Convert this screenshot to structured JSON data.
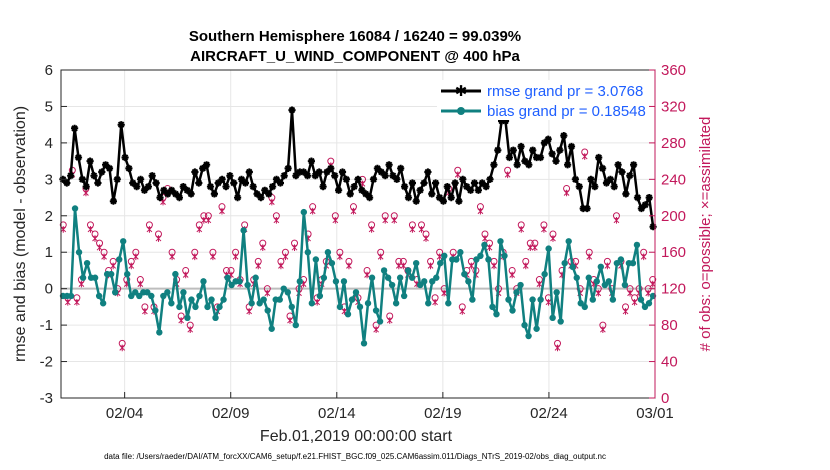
{
  "chart_data": {
    "type": "line",
    "title": "Southern Hemisphere 16084 / 16240 = 99.039%",
    "subtitle": "AIRCRAFT_U_WIND_COMPONENT @ 400 hPa",
    "xlabel": "Feb.01,2019 00:00:00 start",
    "ylabel": "rmse and bias (model - observation)",
    "y2label": "# of obs: o=possible; ×=assimilated",
    "footer": "data file: /Users/raeder/DAI/ATM_forcXX/CAM6_setup/f.e21.FHIST_BGC.f09_025.CAM6assim.011/Diags_NTrS_2019-02/obs_diag_output.nc",
    "x_tick_labels": [
      "02/04",
      "02/09",
      "02/14",
      "02/19",
      "02/24",
      "03/01"
    ],
    "x_tick_days": [
      3,
      8,
      13,
      18,
      23,
      28
    ],
    "xlim": [
      0,
      28
    ],
    "ylim": [
      -3,
      6
    ],
    "y_ticks": [
      "-3",
      "-2",
      "-1",
      "0",
      "1",
      "2",
      "3",
      "4",
      "5",
      "6"
    ],
    "y2lim": [
      0,
      360
    ],
    "y2_ticks": [
      "0",
      "40",
      "80",
      "120",
      "160",
      "200",
      "240",
      "280",
      "320",
      "360"
    ],
    "grid": true,
    "legend_position": "top-right",
    "series": [
      {
        "name": "rmse grand pr = 3.0768",
        "color": "#000000",
        "marker": "star",
        "values": [
          3.0,
          2.9,
          3.1,
          4.4,
          3.6,
          3.0,
          2.8,
          3.5,
          3.1,
          2.9,
          3.2,
          3.4,
          3.3,
          2.4,
          3.0,
          4.5,
          3.6,
          3.3,
          2.9,
          2.8,
          3.0,
          2.7,
          2.8,
          3.1,
          2.9,
          2.5,
          2.7,
          2.6,
          2.7,
          2.6,
          2.5,
          2.8,
          2.7,
          2.6,
          3.2,
          2.9,
          3.3,
          3.4,
          2.8,
          2.6,
          2.9,
          3.0,
          2.8,
          3.1,
          2.9,
          2.5,
          3.0,
          2.9,
          3.2,
          2.8,
          2.6,
          2.5,
          2.7,
          2.6,
          2.8,
          3.0,
          2.9,
          3.1,
          3.3,
          4.9,
          3.1,
          3.2,
          3.2,
          3.1,
          3.5,
          3.1,
          3.2,
          2.8,
          3.2,
          3.3,
          3.1,
          2.7,
          3.2,
          3.0,
          2.6,
          2.8,
          3.0,
          2.7,
          2.6,
          2.5,
          3.0,
          3.3,
          3.2,
          3.1,
          3.4,
          3.1,
          3.0,
          3.3,
          2.8,
          2.5,
          2.9,
          2.4,
          2.7,
          2.9,
          3.2,
          2.6,
          2.9,
          2.5,
          2.4,
          2.8,
          2.5,
          2.9,
          2.4,
          3.0,
          2.8,
          2.7,
          2.9,
          2.7,
          2.9,
          2.8,
          3.0,
          3.4,
          3.8,
          4.6,
          4.6,
          3.6,
          3.8,
          3.4,
          3.9,
          3.5,
          3.4,
          3.8,
          3.6,
          3.6,
          4.0,
          4.1,
          3.7,
          3.5,
          3.8,
          4.2,
          3.4,
          3.9,
          3.0,
          2.8,
          2.2,
          2.2,
          3.0,
          2.8,
          3.6,
          3.3,
          2.9,
          3.0,
          2.8,
          3.4,
          3.2,
          2.6,
          3.1,
          3.4,
          2.5,
          2.2,
          2.3,
          2.5,
          1.7
        ]
      },
      {
        "name": "bias grand pr = 0.18548",
        "color": "#108080",
        "marker": "circle",
        "values": [
          -0.2,
          -0.2,
          -0.2,
          2.2,
          1.0,
          0.3,
          0.7,
          0.3,
          0.3,
          -0.2,
          -0.4,
          0.4,
          0.4,
          -0.1,
          0.8,
          1.3,
          0.4,
          -0.2,
          -0.1,
          -0.2,
          -0.1,
          -0.1,
          -0.2,
          -0.6,
          -1.2,
          -0.2,
          -0.1,
          -0.4,
          0.4,
          -0.5,
          -0.1,
          -0.8,
          -0.3,
          -0.5,
          -0.2,
          0.2,
          -0.5,
          -0.3,
          -0.8,
          -0.5,
          -0.3,
          0.3,
          0.1,
          0.2,
          0.2,
          1.6,
          0.1,
          -0.4,
          0.3,
          -0.4,
          -0.3,
          -0.6,
          -1.1,
          -0.3,
          -0.3,
          0.0,
          -0.1,
          -0.5,
          -1.0,
          0.2,
          2.1,
          1.0,
          -0.4,
          0.8,
          -0.2,
          0.3,
          1.0,
          0.7,
          0.2,
          -0.5,
          0.2,
          -0.7,
          -0.3,
          -0.1,
          -0.5,
          -1.5,
          -0.4,
          0.3,
          -0.6,
          -0.9,
          0.5,
          0.3,
          0.1,
          -0.4,
          0.3,
          -0.2,
          0.5,
          0.3,
          0.7,
          0.1,
          0.2,
          -0.4,
          0.2,
          0.3,
          0.7,
          0.9,
          -0.4,
          0.8,
          0.8,
          1.0,
          0.4,
          0.2,
          -0.3,
          0.8,
          0.9,
          1.2,
          0.8,
          -0.5,
          -0.7,
          1.3,
          0.9,
          -0.3,
          -0.6,
          -0.1,
          0.1,
          -1.0,
          -1.3,
          -0.3,
          -1.1,
          -0.3,
          0.4,
          1.1,
          -0.8,
          -0.1,
          -0.9,
          0.7,
          1.3,
          0.6,
          0.3,
          -0.4,
          -0.5,
          0.3,
          -0.3,
          0.2,
          0.6,
          0.1,
          0.2,
          -0.3,
          0.7,
          0.8,
          0.1,
          0.7,
          0.7,
          1.2,
          -0.3,
          -0.5,
          -0.4,
          -0.2
        ]
      }
    ],
    "obs_possible": [
      190,
      110,
      250,
      110,
      130,
      230,
      190,
      180,
      170,
      160,
      140,
      150,
      120,
      60,
      130,
      150,
      160,
      130,
      100,
      190,
      100,
      180,
      220,
      230,
      160,
      130,
      90,
      140,
      80,
      160,
      190,
      200,
      200,
      160,
      100,
      210,
      140,
      140,
      160,
      130,
      190,
      100,
      130,
      150,
      170,
      120,
      220,
      200,
      150,
      160,
      90,
      170,
      120,
      130,
      180,
      210,
      110,
      130,
      150,
      260,
      200,
      160,
      100,
      150,
      210,
      110,
      240,
      140,
      190,
      80,
      160,
      200,
      90,
      200,
      150,
      150,
      140,
      190,
      130,
      190,
      180,
      150,
      110,
      160,
      120,
      230,
      160,
      250,
      100,
      140,
      150,
      140,
      210,
      180,
      170,
      150,
      120,
      160,
      250,
      140,
      120,
      190,
      150,
      170,
      170,
      130,
      190,
      110,
      180,
      60,
      140,
      230,
      150,
      150,
      120,
      270,
      160,
      130,
      120,
      80,
      150,
      120,
      200,
      150,
      100,
      120,
      110,
      120,
      160,
      120,
      130
    ],
    "obs_assimilated": [
      185,
      105,
      245,
      105,
      125,
      225,
      185,
      175,
      165,
      155,
      135,
      145,
      115,
      55,
      125,
      145,
      155,
      125,
      95,
      185,
      95,
      175,
      215,
      225,
      155,
      125,
      85,
      135,
      75,
      155,
      185,
      195,
      195,
      155,
      95,
      205,
      135,
      135,
      155,
      125,
      185,
      95,
      125,
      145,
      165,
      115,
      215,
      195,
      145,
      155,
      85,
      165,
      115,
      125,
      175,
      205,
      105,
      125,
      145,
      255,
      195,
      155,
      95,
      145,
      205,
      105,
      235,
      135,
      185,
      75,
      155,
      195,
      85,
      195,
      145,
      145,
      135,
      185,
      125,
      185,
      175,
      145,
      105,
      155,
      115,
      225,
      155,
      245,
      95,
      135,
      145,
      135,
      205,
      175,
      165,
      145,
      115,
      155,
      245,
      135,
      115,
      185,
      145,
      165,
      165,
      125,
      185,
      105,
      175,
      55,
      135,
      225,
      145,
      145,
      115,
      265,
      155,
      125,
      115,
      75,
      145,
      115,
      195,
      145,
      95,
      115,
      105,
      115,
      155,
      115,
      125
    ]
  }
}
